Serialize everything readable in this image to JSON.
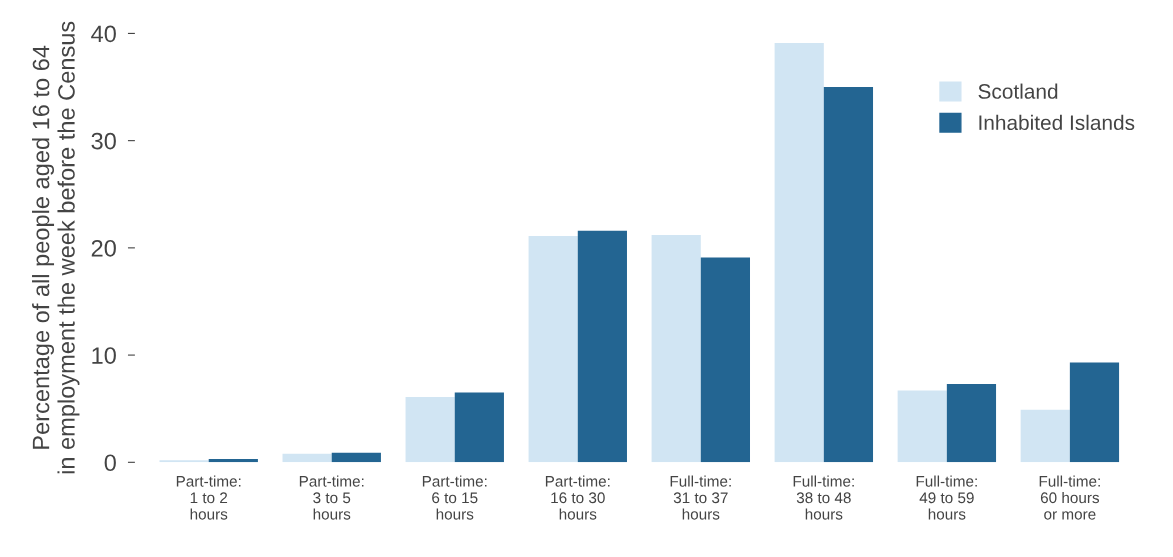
{
  "chart_data": {
    "type": "bar",
    "ylabel": "Percentage of all people aged 16 to 64\nin employment the week before the Census",
    "categories": [
      "Part-time:\n1 to 2\nhours",
      "Part-time:\n3 to 5\nhours",
      "Part-time:\n6 to 15\nhours",
      "Part-time:\n16 to 30\nhours",
      "Full-time:\n31 to 37\nhours",
      "Full-time:\n38 to 48\nhours",
      "Full-time:\n49 to 59\nhours",
      "Full-time:\n60 hours\nor more"
    ],
    "series": [
      {
        "name": "Scotland",
        "color": "#d1e5f3",
        "values": [
          0.2,
          0.8,
          6.1,
          21.1,
          21.2,
          39.1,
          6.7,
          4.9
        ]
      },
      {
        "name": "Inhabited Islands",
        "color": "#236592",
        "values": [
          0.3,
          0.9,
          6.5,
          21.6,
          19.1,
          35.0,
          7.3,
          9.3
        ]
      }
    ],
    "ylim": [
      0,
      40
    ],
    "yticks": [
      0,
      10,
      20,
      30,
      40
    ],
    "grid": false,
    "legend": "top right"
  }
}
